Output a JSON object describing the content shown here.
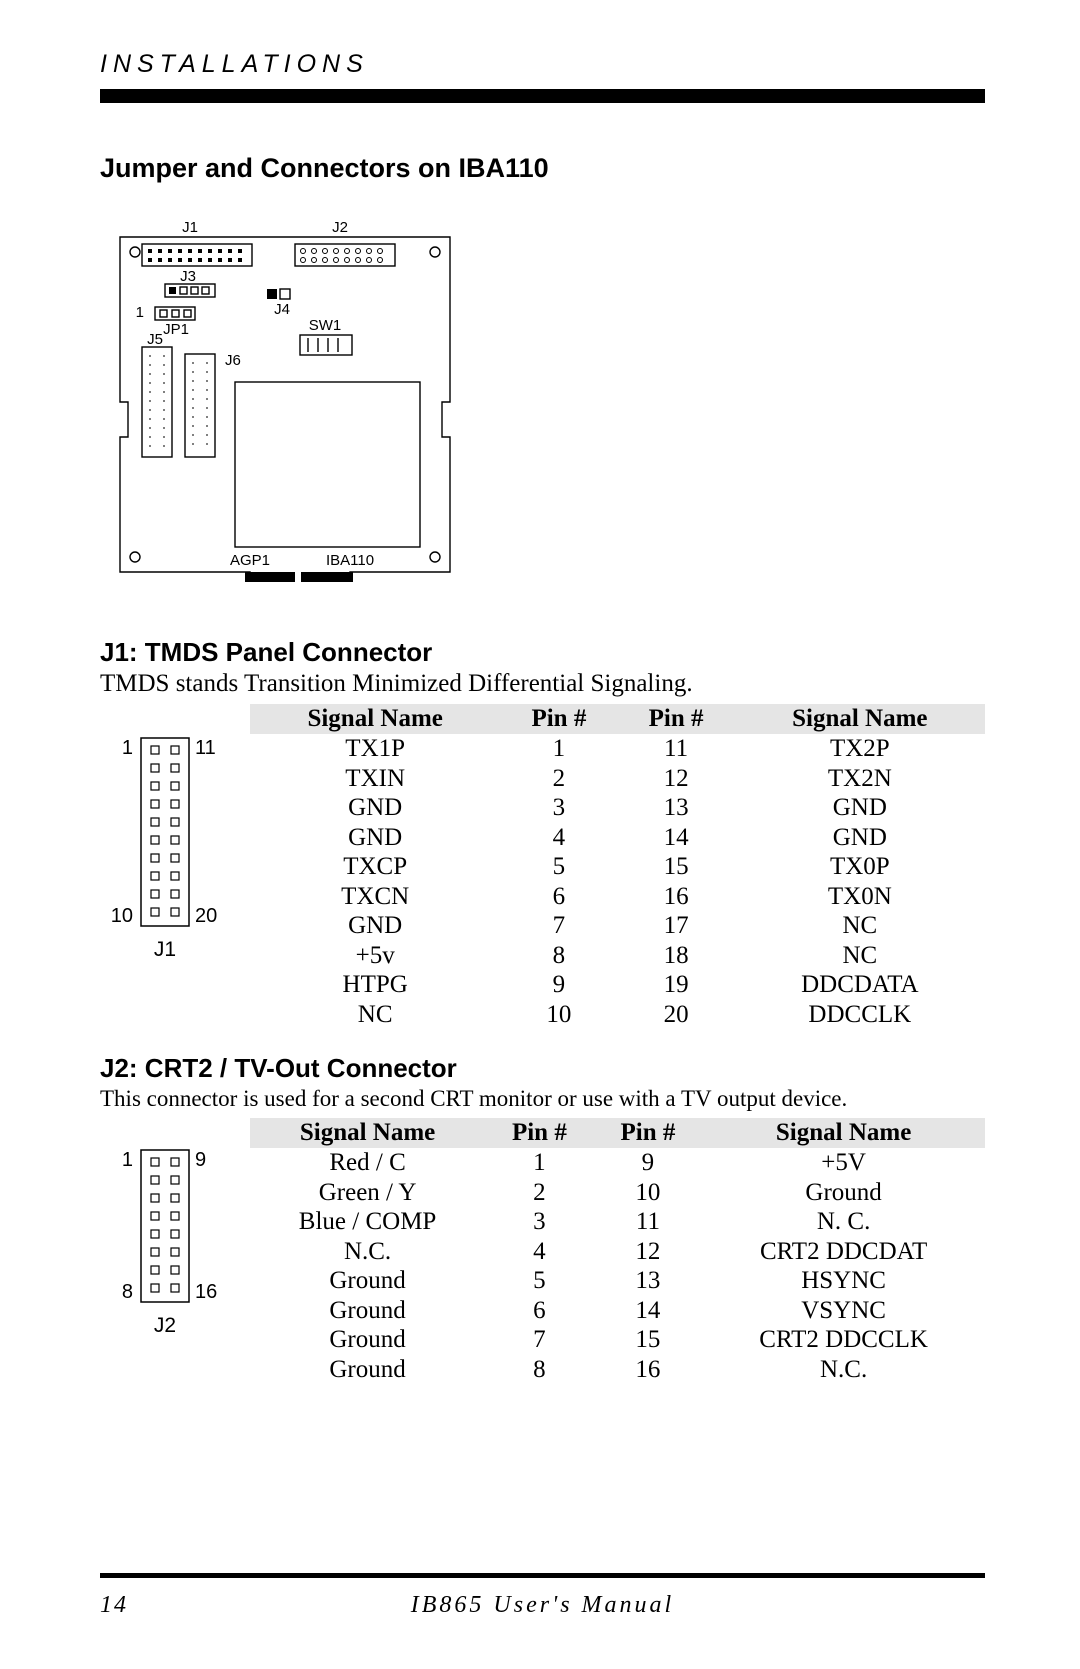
{
  "header": {
    "section_label": "INSTALLATIONS"
  },
  "title": "Jumper and Connectors on IBA110",
  "board": {
    "labels": [
      "J1",
      "J2",
      "J3",
      "J4",
      "JP1",
      "J5",
      "J6",
      "SW1",
      "AGP1",
      "IBA110",
      "1"
    ]
  },
  "j1": {
    "title": "J1: TMDS Panel Connector",
    "desc": "TMDS stands Transition Minimized Differential Signaling.",
    "diagram": {
      "name": "J1",
      "rows": 10,
      "top_left": "1",
      "top_right": "11",
      "bot_left": "10",
      "bot_right": "20"
    },
    "columns": [
      "Signal Name",
      "Pin #",
      "Pin #",
      "Signal Name"
    ],
    "rows": [
      [
        "TX1P",
        "1",
        "11",
        "TX2P"
      ],
      [
        "TXIN",
        "2",
        "12",
        "TX2N"
      ],
      [
        "GND",
        "3",
        "13",
        "GND"
      ],
      [
        "GND",
        "4",
        "14",
        "GND"
      ],
      [
        "TXCP",
        "5",
        "15",
        "TX0P"
      ],
      [
        "TXCN",
        "6",
        "16",
        "TX0N"
      ],
      [
        "GND",
        "7",
        "17",
        "NC"
      ],
      [
        "+5v",
        "8",
        "18",
        "NC"
      ],
      [
        "HTPG",
        "9",
        "19",
        "DDCDATA"
      ],
      [
        "NC",
        "10",
        "20",
        "DDCCLK"
      ]
    ]
  },
  "j2": {
    "title": "J2: CRT2 / TV-Out Connector",
    "desc": "This connector is used for a second CRT monitor or use with a TV output device.",
    "diagram": {
      "name": "J2",
      "rows": 8,
      "top_left": "1",
      "top_right": "9",
      "bot_left": "8",
      "bot_right": "16"
    },
    "columns": [
      "Signal Name",
      "Pin #",
      "Pin #",
      "Signal Name"
    ],
    "rows": [
      [
        "Red / C",
        "1",
        "9",
        "+5V"
      ],
      [
        "Green / Y",
        "2",
        "10",
        "Ground"
      ],
      [
        "Blue / COMP",
        "3",
        "11",
        "N. C."
      ],
      [
        "N.C.",
        "4",
        "12",
        "CRT2 DDCDAT"
      ],
      [
        "Ground",
        "5",
        "13",
        "HSYNC"
      ],
      [
        "Ground",
        "6",
        "14",
        "VSYNC"
      ],
      [
        "Ground",
        "7",
        "15",
        "CRT2 DDCCLK"
      ],
      [
        "Ground",
        "8",
        "16",
        "N.C."
      ]
    ]
  },
  "footer": {
    "page": "14",
    "manual": "IB865 User's Manual"
  },
  "style": {
    "header_bg": "#e5e5e5",
    "line_color": "#000000",
    "pin_stroke": "#000000"
  }
}
